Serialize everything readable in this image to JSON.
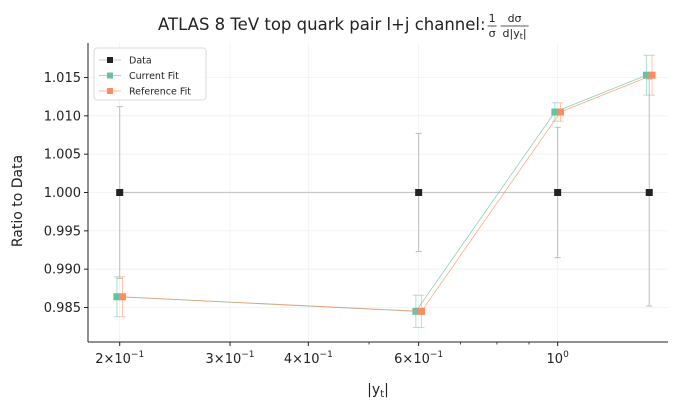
{
  "chart_data": {
    "type": "line",
    "title": "ATLAS 8 TeV top quark pair l+j channel: ",
    "title_math": {
      "prefix_num": "1",
      "prefix_den": "σ",
      "num": "dσ",
      "den": "d|y",
      "den_sub": "t",
      "den_suffix": "|"
    },
    "xlabel": "|y",
    "xlabel_sub": "t",
    "xlabel_suffix": "|",
    "ylabel": "Ratio to Data",
    "xscale": "log",
    "xlim": [
      0.178,
      1.5
    ],
    "ylim": [
      0.9805,
      1.0195
    ],
    "x_ticks": [
      {
        "value": 0.2,
        "mant": "2",
        "exp": "−1"
      },
      {
        "value": 0.3,
        "mant": "3",
        "exp": "−1"
      },
      {
        "value": 0.4,
        "mant": "4",
        "exp": "−1"
      },
      {
        "value": 0.6,
        "mant": "6",
        "exp": "−1"
      },
      {
        "value": 1.0,
        "mant": "",
        "exp": "0"
      }
    ],
    "x_minor_ticks": [
      0.5,
      0.7,
      0.8,
      0.9
    ],
    "y_ticks": [
      "0.985",
      "0.990",
      "0.995",
      "1.000",
      "1.005",
      "1.010",
      "1.015"
    ],
    "grid": true,
    "legend_position": "top-left",
    "series": [
      {
        "name": "Data",
        "color": "#222222",
        "line_color": "#c8c8c8",
        "x": [
          0.2,
          0.6,
          1.0,
          1.4
        ],
        "y": [
          1.0,
          1.0,
          1.0,
          1.0
        ],
        "err": [
          0.0112,
          0.0077,
          0.0085,
          0.0148
        ]
      },
      {
        "name": "Current Fit",
        "color": "#66c2a5",
        "x": [
          0.2,
          0.6,
          1.0,
          1.4
        ],
        "y": [
          0.9864,
          0.9845,
          1.0105,
          1.0153
        ],
        "err": [
          0.0026,
          0.0021,
          0.0012,
          0.0026
        ]
      },
      {
        "name": "Reference Fit",
        "color": "#fc8d62",
        "x": [
          0.2,
          0.6,
          1.0,
          1.4
        ],
        "y": [
          0.9864,
          0.9845,
          1.0105,
          1.0153
        ],
        "err": [
          0.0026,
          0.0021,
          0.0012,
          0.0026
        ]
      }
    ]
  }
}
